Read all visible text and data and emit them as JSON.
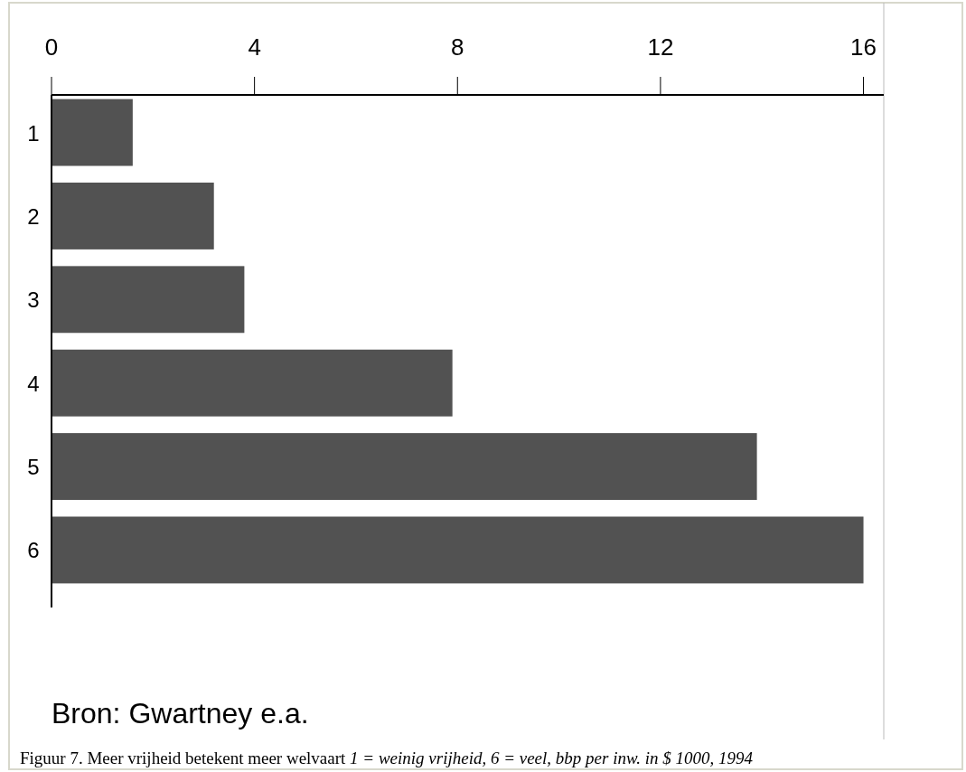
{
  "chart_data": {
    "type": "bar",
    "orientation": "horizontal",
    "categories": [
      "1",
      "2",
      "3",
      "4",
      "5",
      "6"
    ],
    "values": [
      1.6,
      3.2,
      3.8,
      7.9,
      13.9,
      16.0
    ],
    "color": "#525252",
    "xlim": [
      0,
      16.4
    ],
    "xticks": [
      0,
      4,
      8,
      12,
      16
    ],
    "grid": false,
    "annotations": [
      "Bron: Gwartney e.a.",
      "Figuur 7. Meer vrijheid betekent meer welvaart",
      "1 = weinig vrijheid, 6 = veel, bbp per inw. in $ 1000, 1994"
    ]
  }
}
